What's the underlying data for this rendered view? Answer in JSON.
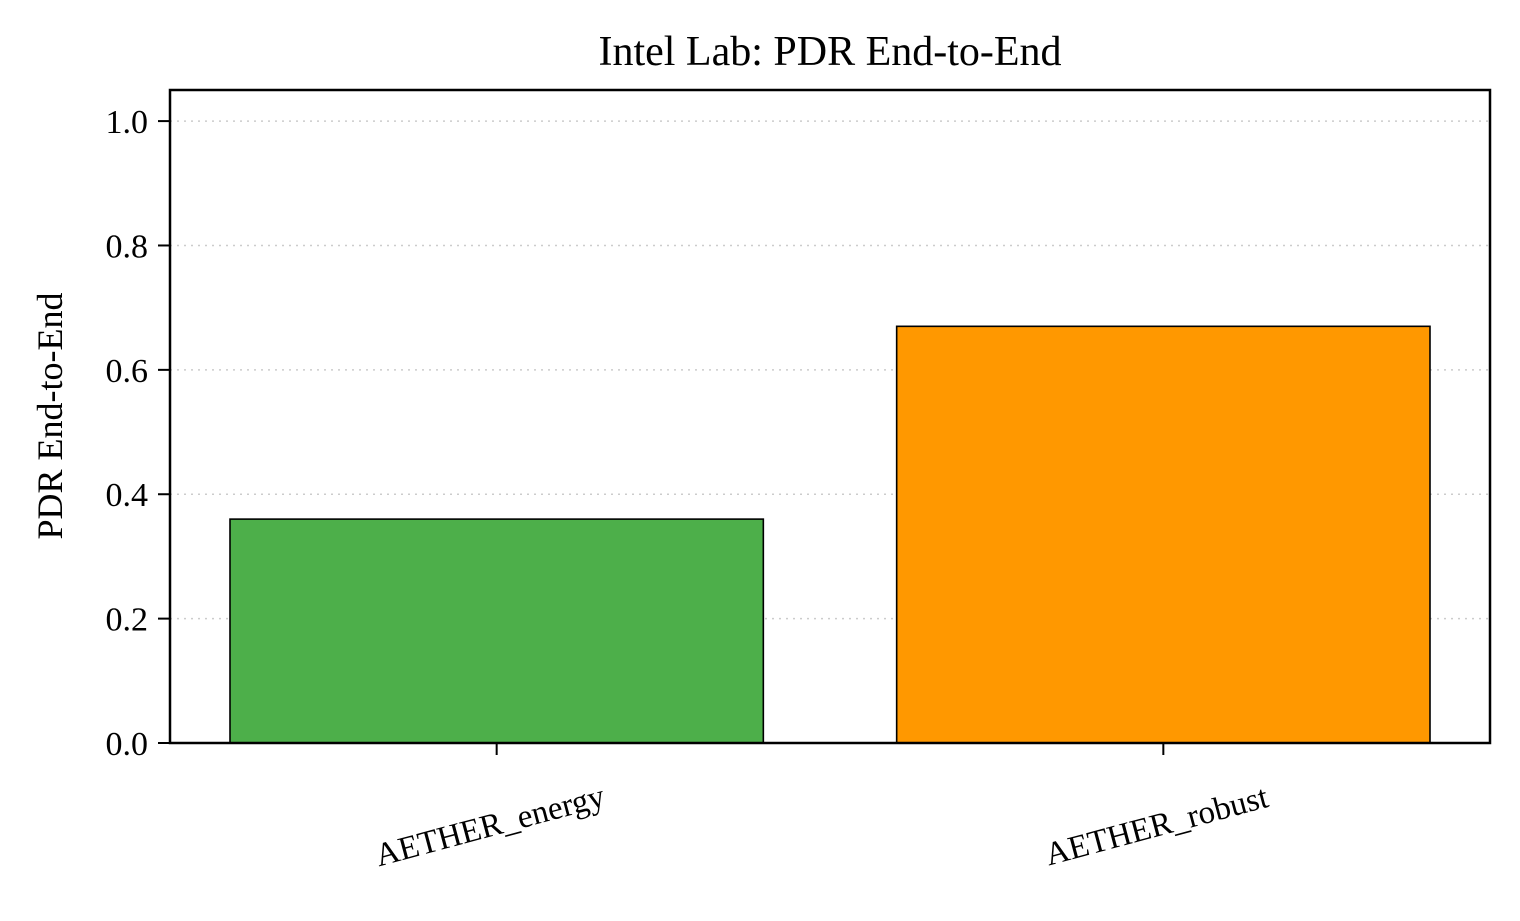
{
  "chart_data": {
    "type": "bar",
    "title": "Intel Lab: PDR End-to-End",
    "xlabel": "",
    "ylabel": "PDR End-to-End",
    "categories": [
      "AETHER_energy",
      "AETHER_robust"
    ],
    "values": [
      0.36,
      0.67
    ],
    "colors": [
      "#4daf4a",
      "#ff9800"
    ],
    "edge_color": "#000000",
    "ylim": [
      0.0,
      1.05
    ],
    "yticks": [
      0.0,
      0.2,
      0.4,
      0.6,
      0.8,
      1.0
    ],
    "ytick_labels": [
      "0.0",
      "0.2",
      "0.4",
      "0.6",
      "0.8",
      "1.0"
    ],
    "grid": "y-dotted",
    "legend": "none",
    "xtick_rotation_deg": -15
  }
}
